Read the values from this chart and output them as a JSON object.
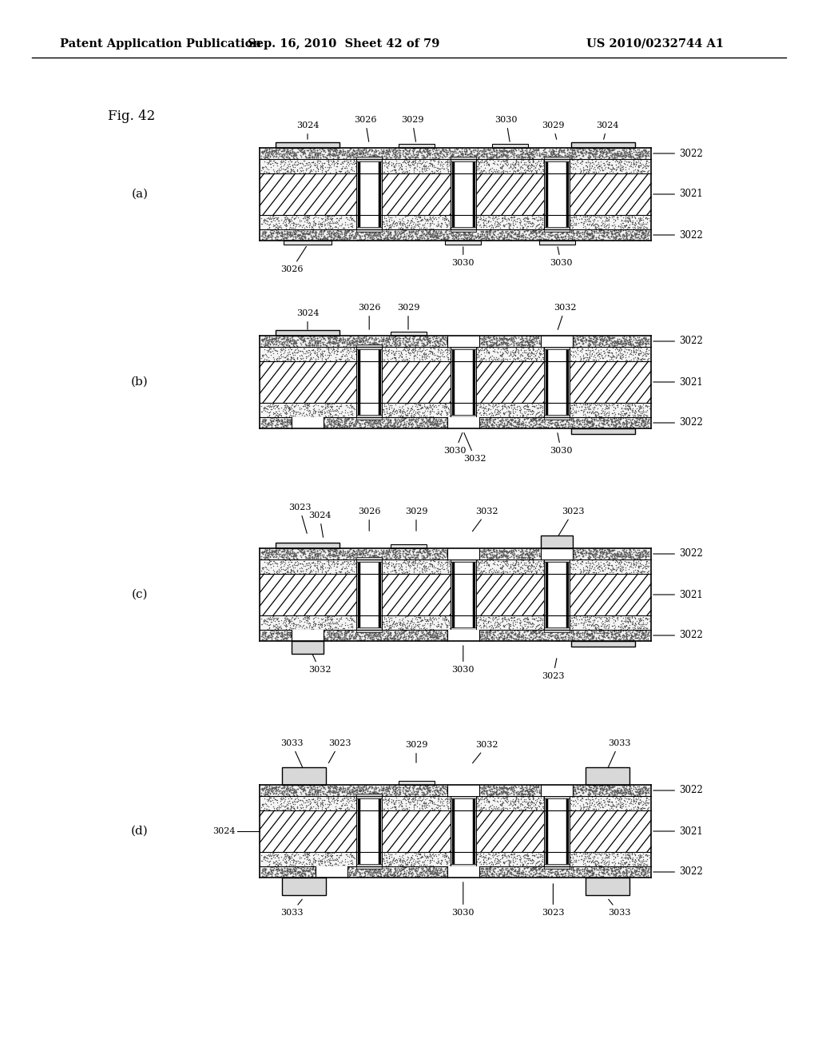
{
  "header_left": "Patent Application Publication",
  "header_mid": "Sep. 16, 2010  Sheet 42 of 79",
  "header_right": "US 2010/0232744 A1",
  "fig_label": "Fig. 42",
  "bg_color": "#ffffff"
}
